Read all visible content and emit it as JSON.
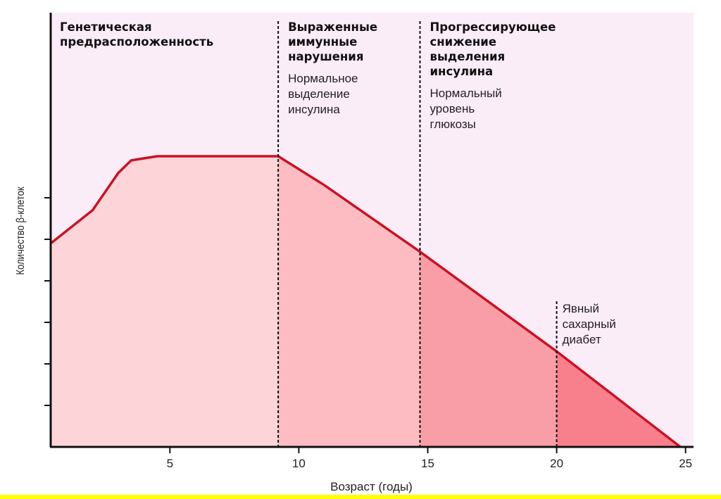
{
  "chart_data": {
    "type": "area",
    "xlabel": "Возраст (годы)",
    "ylabel": "Количество β-клеток",
    "xlim": [
      1,
      25
    ],
    "ylim": [
      0,
      7
    ],
    "x_ticks": [
      5,
      10,
      15,
      20,
      25
    ],
    "y_ticks": [
      1,
      2,
      3,
      4,
      5,
      6
    ],
    "grid": false,
    "series": [
      {
        "x": [
          1,
          2,
          3,
          3.5,
          4.5,
          6,
          8,
          9.2,
          11,
          14.7,
          20,
          24.8
        ],
        "y": [
          4.9,
          5.7,
          6.6,
          6.9,
          7.0,
          7.0,
          7.0,
          7.0,
          6.3,
          4.7,
          2.3,
          0.0
        ]
      }
    ],
    "phases": [
      {
        "x_start": 1,
        "x_end": 9.2,
        "title": [
          "Генетическая",
          "предрасположенность"
        ],
        "note": [],
        "fill": "#fdd5d8"
      },
      {
        "x_start": 9.2,
        "x_end": 14.7,
        "title": [
          "Выраженные",
          "иммунные",
          "нарушения"
        ],
        "note": [
          "Нормальное",
          "выделение",
          "инсулина"
        ],
        "fill": "#fcbcc2"
      },
      {
        "x_start": 14.7,
        "x_end": 20,
        "title": [
          "Прогрессирующее",
          "снижение",
          "выделения",
          "инсулина"
        ],
        "note": [
          "Нормальный",
          "уровень",
          "глюкозы"
        ],
        "fill": "#f99ea7"
      },
      {
        "x_start": 20,
        "x_end": 25,
        "title": [],
        "note": [
          "Явный",
          "сахарный",
          "диабет"
        ],
        "fill": "#f7808c"
      }
    ],
    "boundaries": [
      9.2,
      14.7,
      20
    ]
  },
  "colors": {
    "plot_background": "#fbedf8",
    "curve": "#cc1122",
    "axis": "#111111",
    "bottom_band": "#ffff00"
  }
}
